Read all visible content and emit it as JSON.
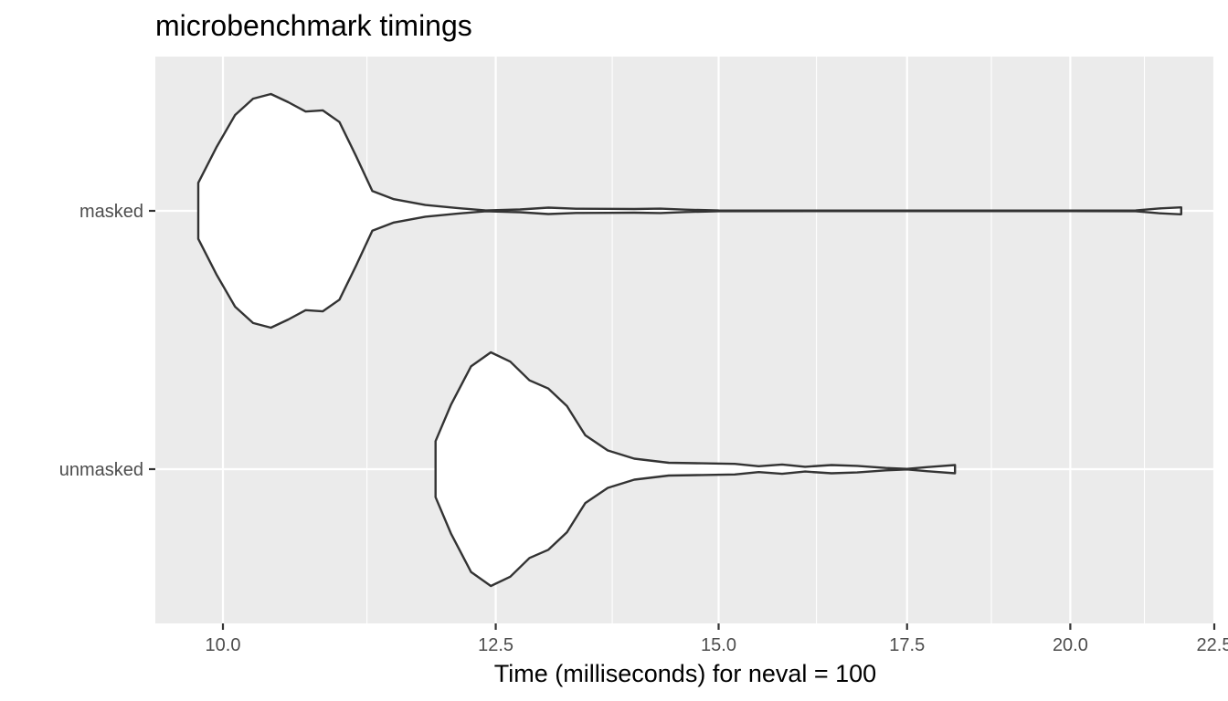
{
  "chart_data": {
    "type": "violin",
    "title": "microbenchmark timings",
    "xlabel": "Time (milliseconds) for neval = 100",
    "ylabel": "",
    "xlim": [
      9.6,
      22.6
    ],
    "x_scale": "log10",
    "x_ticks": [
      10.0,
      12.5,
      15.0,
      17.5,
      20.0,
      22.5
    ],
    "x_tick_labels": [
      "10.0",
      "12.5",
      "15.0",
      "17.5",
      "20.0",
      "22.5"
    ],
    "categories": [
      "masked",
      "unmasked"
    ],
    "grid": true,
    "colors": {
      "panel_background": "#ebebeb",
      "grid": "#ffffff",
      "violin_fill": "#ffffff",
      "violin_outline": "#333333"
    },
    "series": [
      {
        "category": "masked",
        "min": 9.8,
        "max": 21.9,
        "density_profile": [
          [
            9.8,
            0.24
          ],
          [
            9.95,
            0.55
          ],
          [
            10.1,
            0.82
          ],
          [
            10.25,
            0.96
          ],
          [
            10.4,
            1.0
          ],
          [
            10.55,
            0.93
          ],
          [
            10.7,
            0.85
          ],
          [
            10.85,
            0.86
          ],
          [
            11.0,
            0.76
          ],
          [
            11.15,
            0.47
          ],
          [
            11.3,
            0.17
          ],
          [
            11.5,
            0.1
          ],
          [
            11.8,
            0.05
          ],
          [
            12.1,
            0.025
          ],
          [
            12.4,
            0.003
          ],
          [
            12.75,
            0.012
          ],
          [
            13.05,
            0.027
          ],
          [
            13.35,
            0.018
          ],
          [
            13.7,
            0.017
          ],
          [
            14.0,
            0.016
          ],
          [
            14.3,
            0.019
          ],
          [
            14.6,
            0.01
          ],
          [
            15.0,
            0.003
          ],
          [
            17.0,
            0.002
          ],
          [
            20.0,
            0.002
          ],
          [
            21.1,
            0.003
          ],
          [
            21.5,
            0.02
          ],
          [
            21.9,
            0.03
          ]
        ]
      },
      {
        "category": "unmasked",
        "min": 11.9,
        "max": 18.2,
        "density_profile": [
          [
            11.9,
            0.24
          ],
          [
            12.05,
            0.55
          ],
          [
            12.25,
            0.88
          ],
          [
            12.45,
            1.0
          ],
          [
            12.65,
            0.92
          ],
          [
            12.85,
            0.76
          ],
          [
            13.05,
            0.69
          ],
          [
            13.25,
            0.54
          ],
          [
            13.45,
            0.29
          ],
          [
            13.7,
            0.16
          ],
          [
            14.0,
            0.09
          ],
          [
            14.4,
            0.055
          ],
          [
            14.8,
            0.05
          ],
          [
            15.2,
            0.045
          ],
          [
            15.5,
            0.025
          ],
          [
            15.8,
            0.04
          ],
          [
            16.1,
            0.02
          ],
          [
            16.45,
            0.035
          ],
          [
            16.8,
            0.028
          ],
          [
            17.2,
            0.01
          ],
          [
            17.5,
            0.002
          ],
          [
            17.85,
            0.02
          ],
          [
            18.2,
            0.035
          ]
        ]
      }
    ]
  }
}
